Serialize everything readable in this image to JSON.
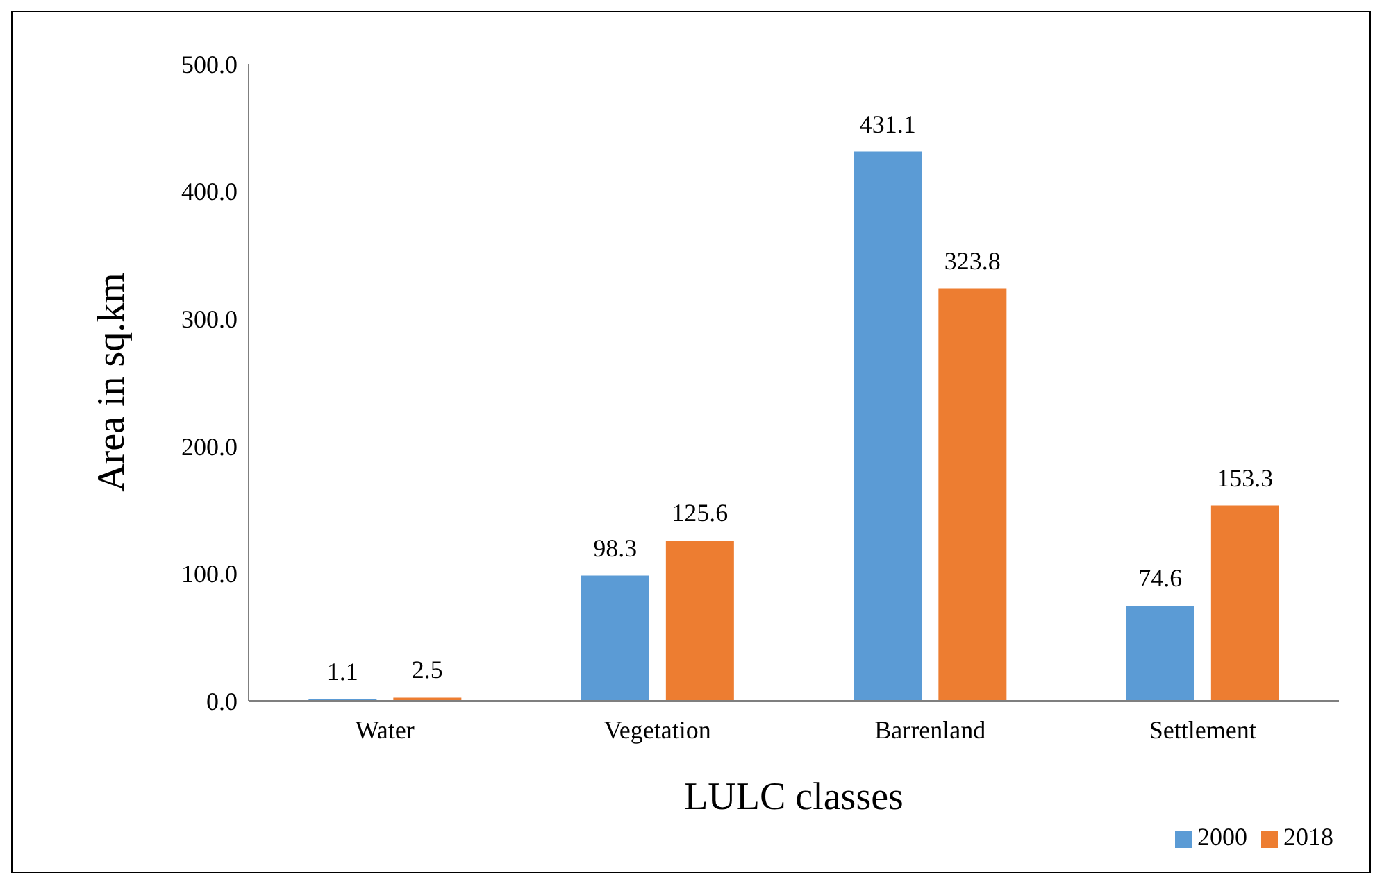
{
  "chart_data": {
    "type": "bar",
    "xlabel": "LULC classes",
    "ylabel": "Area in sq.km",
    "categories": [
      "Water",
      "Vegetation",
      "Barrenland",
      "Settlement"
    ],
    "series": [
      {
        "name": "2000",
        "color": "#5b9bd5",
        "values": [
          1.1,
          98.3,
          431.1,
          74.6
        ]
      },
      {
        "name": "2018",
        "color": "#ed7d31",
        "values": [
          2.5,
          125.6,
          323.8,
          153.3
        ]
      }
    ],
    "ylim": [
      0,
      500
    ],
    "yticks": [
      {
        "value": 0,
        "label": "0.0"
      },
      {
        "value": 100,
        "label": "100.0"
      },
      {
        "value": 200,
        "label": "200.0"
      },
      {
        "value": 300,
        "label": "300.0"
      },
      {
        "value": 400,
        "label": "400.0"
      },
      {
        "value": 500,
        "label": "500.0"
      }
    ],
    "data_labels": true,
    "grid": false,
    "legend": "bottom right"
  }
}
